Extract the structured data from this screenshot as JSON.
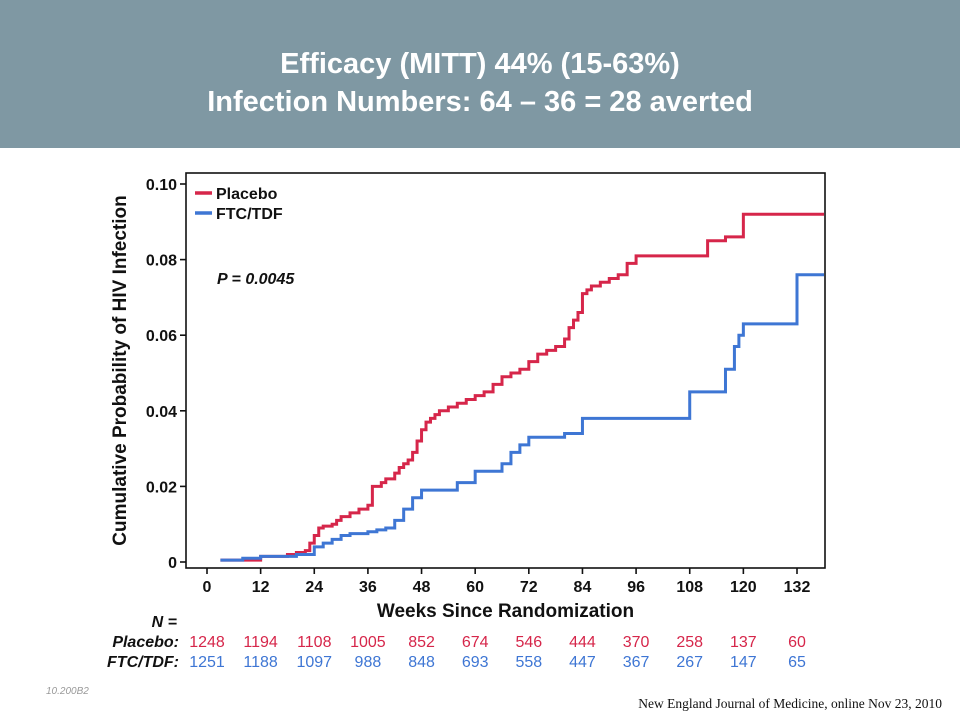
{
  "header": {
    "line1": "Efficacy (MITT) 44% (15-63%)",
    "line2": "Infection Numbers: 64 – 36 = 28 averted"
  },
  "chart_data": {
    "type": "line",
    "title": "",
    "xlabel": "Weeks Since Randomization",
    "ylabel": "Cumulative Probability of HIV Infection",
    "xlim": [
      -5,
      135
    ],
    "ylim": [
      0,
      0.1
    ],
    "x_ticks": [
      0,
      12,
      24,
      36,
      48,
      60,
      72,
      84,
      96,
      108,
      120,
      132
    ],
    "y_ticks": [
      0,
      0.02,
      0.04,
      0.06,
      0.08,
      0.1
    ],
    "y_tick_labels": [
      "0",
      "0.02",
      "0.04",
      "0.06",
      "0.08",
      "0.10"
    ],
    "legend_position": "top-left",
    "annotation": "P = 0.0045",
    "line_style": "step",
    "series": [
      {
        "name": "Placebo",
        "color": "#d6264a",
        "x": [
          3,
          12,
          18,
          20,
          22,
          23,
          24,
          25,
          26,
          28,
          29,
          30,
          32,
          34,
          36,
          37,
          39,
          40,
          42,
          43,
          44,
          45,
          46,
          47,
          48,
          49,
          50,
          51,
          52,
          54,
          56,
          58,
          60,
          62,
          64,
          66,
          68,
          70,
          72,
          74,
          76,
          78,
          80,
          81,
          82,
          83,
          84,
          85,
          86,
          88,
          90,
          92,
          94,
          96,
          100,
          104,
          108,
          112,
          116,
          120,
          125,
          130,
          135
        ],
        "y": [
          0.0005,
          0.0015,
          0.002,
          0.0025,
          0.003,
          0.005,
          0.007,
          0.009,
          0.0095,
          0.01,
          0.011,
          0.012,
          0.013,
          0.014,
          0.015,
          0.02,
          0.021,
          0.022,
          0.0235,
          0.025,
          0.026,
          0.027,
          0.029,
          0.032,
          0.035,
          0.037,
          0.038,
          0.039,
          0.04,
          0.041,
          0.042,
          0.043,
          0.044,
          0.045,
          0.047,
          0.049,
          0.05,
          0.051,
          0.053,
          0.055,
          0.056,
          0.057,
          0.059,
          0.062,
          0.064,
          0.066,
          0.071,
          0.072,
          0.073,
          0.074,
          0.075,
          0.076,
          0.079,
          0.081,
          0.081,
          0.081,
          0.081,
          0.085,
          0.086,
          0.092,
          0.092,
          0.092,
          0.092
        ]
      },
      {
        "name": "FTC/TDF",
        "color": "#3e76d4",
        "x": [
          3,
          8,
          12,
          20,
          24,
          26,
          28,
          30,
          32,
          36,
          38,
          40,
          42,
          44,
          46,
          48,
          50,
          52,
          56,
          60,
          64,
          66,
          68,
          70,
          72,
          76,
          80,
          84,
          88,
          96,
          104,
          108,
          112,
          116,
          118,
          119,
          120,
          124,
          126,
          132,
          135
        ],
        "y": [
          0.0005,
          0.001,
          0.0015,
          0.002,
          0.004,
          0.005,
          0.006,
          0.007,
          0.0075,
          0.008,
          0.0085,
          0.009,
          0.011,
          0.014,
          0.017,
          0.019,
          0.019,
          0.019,
          0.021,
          0.024,
          0.024,
          0.026,
          0.029,
          0.031,
          0.033,
          0.033,
          0.034,
          0.038,
          0.038,
          0.038,
          0.038,
          0.045,
          0.045,
          0.051,
          0.057,
          0.06,
          0.063,
          0.063,
          0.063,
          0.076,
          0.076
        ]
      }
    ],
    "risk_table": {
      "header": "N =",
      "rows": [
        {
          "label": "Placebo:",
          "color": "#d6264a",
          "values": [
            "1248",
            "1194",
            "1108",
            "1005",
            "852",
            "674",
            "546",
            "444",
            "370",
            "258",
            "137",
            "60"
          ]
        },
        {
          "label": "FTC/TDF:",
          "color": "#3e76d4",
          "values": [
            "1251",
            "1188",
            "1097",
            "988",
            "848",
            "693",
            "558",
            "447",
            "367",
            "267",
            "147",
            "65"
          ]
        }
      ]
    }
  },
  "footer": {
    "code": "10.200B2",
    "citation": "New England Journal of Medicine, online Nov 23, 2010"
  }
}
